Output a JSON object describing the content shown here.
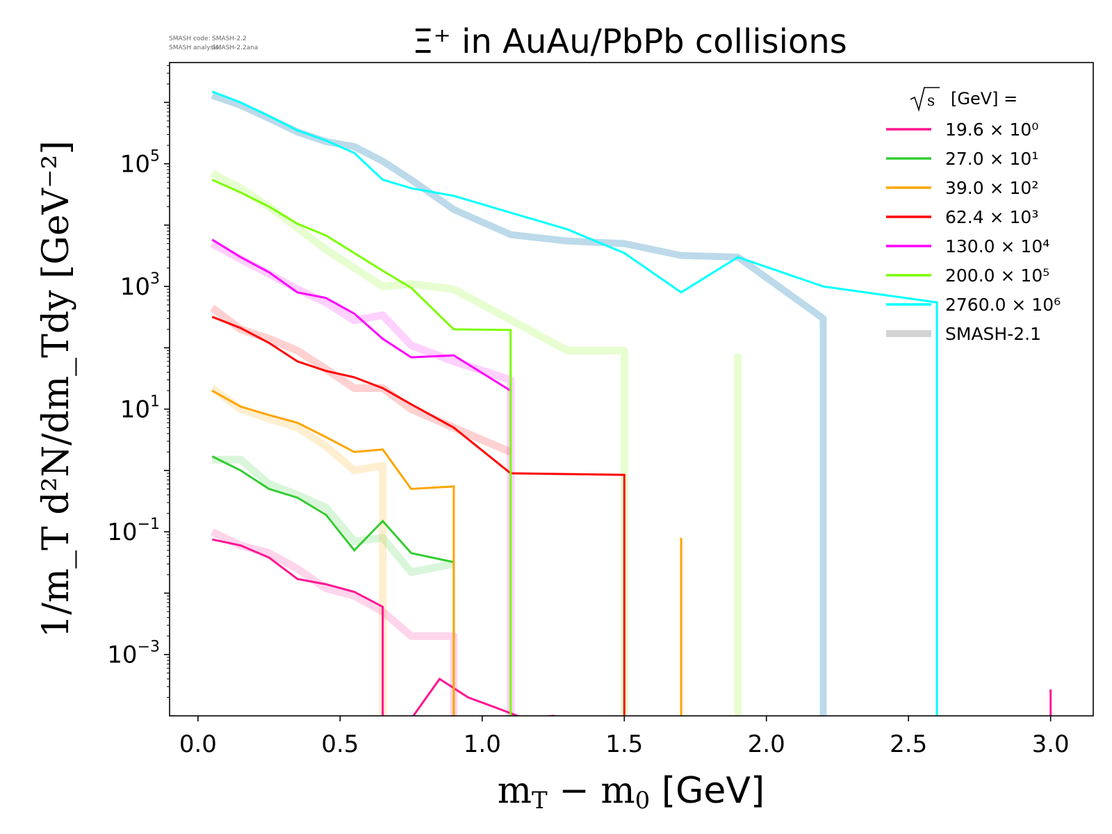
{
  "chart_data": {
    "type": "line",
    "title": "Ξ⁺ in AuAu/PbPb collisions",
    "xlabel_main": "m",
    "xlabel_sub1": "T",
    "xlabel_mid": " − m",
    "xlabel_sub2": "0",
    "xlabel_unit": " [GeV]",
    "ylabel_text": "1/m_T d²N/dm_Tdy [GeV⁻²]",
    "xlim": [
      -0.1,
      3.15
    ],
    "ylim_log10": [
      -4.0,
      6.65
    ],
    "yscale": "log",
    "grid": false,
    "legend_position": "top-right",
    "legend_title": "[GeV] =",
    "x_ticks": [
      "0.0",
      "0.5",
      "1.0",
      "1.5",
      "2.0",
      "2.5",
      "3.0"
    ],
    "y_ticks": [
      {
        "base": "10",
        "exp": "5",
        "log": 5
      },
      {
        "base": "10",
        "exp": "3",
        "log": 3
      },
      {
        "base": "10",
        "exp": "1",
        "log": 1
      },
      {
        "base": "10",
        "exp": "−1",
        "log": -1
      },
      {
        "base": "10",
        "exp": "−3",
        "log": -3
      }
    ],
    "series": [
      {
        "name": "19.6 × 10⁰",
        "color": "#ff1493",
        "x": [
          0.05,
          0.15,
          0.25,
          0.35,
          0.45,
          0.55,
          0.65,
          0.65,
          0.75,
          0.85,
          0.95,
          1.05,
          1.15,
          1.25,
          1.3,
          1.3,
          3.0,
          3.0
        ],
        "y": [
          0.075,
          0.06,
          0.038,
          0.017,
          0.014,
          0.0105,
          0.006,
          8e-05,
          8e-05,
          0.0004,
          0.0002,
          0.000135,
          9e-05,
          0.0001,
          9e-05,
          8e-05,
          8e-05,
          0.00027
        ]
      },
      {
        "name": "27.0 × 10¹",
        "color": "#32cd32",
        "x": [
          0.05,
          0.15,
          0.25,
          0.35,
          0.45,
          0.55,
          0.65,
          0.75,
          0.9,
          0.9
        ],
        "y": [
          1.7,
          1.0,
          0.5,
          0.36,
          0.19,
          0.05,
          0.15,
          0.045,
          0.032,
          8e-05
        ]
      },
      {
        "name": "39.0 × 10²",
        "color": "#ffa500",
        "x": [
          0.05,
          0.15,
          0.25,
          0.35,
          0.45,
          0.55,
          0.65,
          0.75,
          0.9,
          0.9,
          1.7,
          1.7
        ],
        "y": [
          20,
          11,
          8,
          6,
          3.5,
          2.0,
          2.2,
          0.5,
          0.55,
          8e-05,
          8e-05,
          0.08
        ]
      },
      {
        "name": "62.4 × 10³",
        "color": "#ff0000",
        "x": [
          0.05,
          0.15,
          0.25,
          0.35,
          0.45,
          0.55,
          0.65,
          0.75,
          0.9,
          1.1,
          1.5,
          1.5
        ],
        "y": [
          320,
          210,
          120,
          60,
          42,
          33,
          22,
          12,
          5,
          0.9,
          0.85,
          8e-05
        ]
      },
      {
        "name": "130.0 × 10⁴",
        "color": "#ff00ff",
        "x": [
          0.05,
          0.15,
          0.25,
          0.35,
          0.45,
          0.55,
          0.65,
          0.75,
          0.9,
          1.1
        ],
        "y": [
          5800,
          3000,
          1700,
          800,
          650,
          360,
          140,
          70,
          75,
          20
        ]
      },
      {
        "name": "200.0 × 10⁵",
        "color": "#7cfc00",
        "x": [
          0.05,
          0.15,
          0.25,
          0.35,
          0.45,
          0.55,
          0.65,
          0.75,
          0.9,
          1.1,
          1.1
        ],
        "y": [
          55000,
          34000,
          20000,
          10500,
          6800,
          3500,
          1800,
          950,
          200,
          195,
          8e-05
        ]
      },
      {
        "name": "2760.0 × 10⁶",
        "color": "#00ffff",
        "x": [
          0.05,
          0.15,
          0.25,
          0.35,
          0.45,
          0.55,
          0.65,
          0.75,
          0.9,
          1.1,
          1.3,
          1.5,
          1.7,
          1.9,
          2.2,
          2.6,
          2.6
        ],
        "y": [
          1500000,
          1000000,
          600000,
          350000,
          240000,
          150000,
          55000,
          40000,
          30000,
          16000,
          8500,
          3500,
          800,
          3000,
          1000,
          550,
          8e-05
        ]
      }
    ],
    "reference": {
      "name": "SMASH-2.1",
      "curves": [
        {
          "color": "#ff1493",
          "x": [
            0.05,
            0.15,
            0.25,
            0.35,
            0.45,
            0.55,
            0.65,
            0.75,
            0.9,
            0.9
          ],
          "y": [
            0.1,
            0.06,
            0.045,
            0.025,
            0.012,
            0.009,
            0.005,
            0.002,
            0.002,
            8e-05
          ]
        },
        {
          "color": "#32cd32",
          "x": [
            0.05,
            0.15,
            0.25,
            0.35,
            0.45,
            0.55,
            0.65,
            0.75,
            0.9
          ],
          "y": [
            1.5,
            1.5,
            0.6,
            0.4,
            0.25,
            0.07,
            0.08,
            0.022,
            0.03
          ]
        },
        {
          "color": "#ffa500",
          "x": [
            0.05,
            0.15,
            0.25,
            0.35,
            0.45,
            0.55,
            0.65,
            0.65
          ],
          "y": [
            22,
            10,
            7,
            5,
            2.5,
            1.0,
            1.2,
            8e-05
          ]
        },
        {
          "color": "#ff0000",
          "x": [
            0.05,
            0.15,
            0.25,
            0.35,
            0.45,
            0.55,
            0.65,
            0.75,
            0.9,
            1.1
          ],
          "y": [
            450,
            200,
            140,
            90,
            45,
            22,
            22,
            10,
            5,
            2
          ]
        },
        {
          "color": "#ff00ff",
          "x": [
            0.05,
            0.15,
            0.25,
            0.35,
            0.45,
            0.55,
            0.65,
            0.75,
            0.9,
            1.1,
            1.1
          ],
          "y": [
            5000,
            2800,
            1600,
            900,
            550,
            280,
            340,
            110,
            60,
            30,
            8e-05
          ]
        },
        {
          "color": "#7cfc00",
          "x": [
            0.05,
            0.15,
            0.25,
            0.35,
            0.45,
            0.55,
            0.65,
            0.75,
            0.9,
            1.3,
            1.5,
            1.5
          ],
          "y": [
            70000,
            40000,
            20000,
            9000,
            4000,
            2000,
            1000,
            1100,
            900,
            90,
            90,
            8e-05
          ]
        },
        {
          "color": "#7cfc00",
          "x": [
            1.9,
            1.9
          ],
          "y": [
            80,
            8e-05
          ]
        },
        {
          "color": "#6aaed0",
          "x": [
            0.05,
            0.15,
            0.25,
            0.35,
            0.45,
            0.55,
            0.65,
            0.75,
            0.9,
            1.1,
            1.3,
            1.5,
            1.7,
            1.9,
            2.2,
            2.2
          ],
          "y": [
            1300000,
            900000,
            550000,
            330000,
            230000,
            190000,
            110000,
            55000,
            18000,
            7000,
            5500,
            5000,
            3200,
            3000,
            300,
            8e-05
          ]
        }
      ]
    },
    "legend_ref_color": "#d3d3d3",
    "legend_ref_label": "SMASH-2.1"
  },
  "smash_info": {
    "code_label": "SMASH code:",
    "code_value": "SMASH-2.2",
    "analysis_label": "SMASH analysis:",
    "analysis_value": "SMASH-2.2ana"
  },
  "sqrt_s": "s"
}
